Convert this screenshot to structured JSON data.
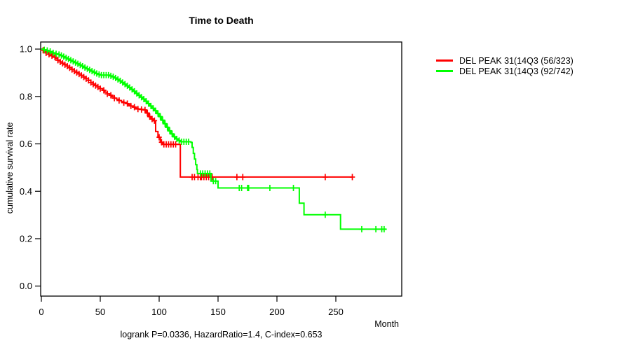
{
  "chart_data": {
    "type": "line",
    "subtype": "kaplan-meier-step-survival",
    "title": "Time to Death",
    "xlabel": "Month",
    "ylabel": "cumulative survival rate",
    "annotation": "logrank P=0.0336, HazardRatio=1.4, C-index=0.653",
    "xlim": [
      0,
      306
    ],
    "ylim": [
      0.0,
      1.0
    ],
    "x_ticks": [
      0,
      50,
      100,
      150,
      200,
      250
    ],
    "y_ticks": [
      0.0,
      0.2,
      0.4,
      0.6,
      0.8,
      1.0
    ],
    "grid": false,
    "legend_position": "outside-right-top",
    "axis_color": "#000000",
    "background_color": "#ffffff",
    "series": [
      {
        "name": "DEL PEAK 31(14Q3 (56/323)",
        "color": "#FF0000",
        "events": 56,
        "total": 323,
        "steps": [
          [
            0,
            1.0
          ],
          [
            1,
            0.995
          ],
          [
            2,
            0.99
          ],
          [
            4,
            0.984
          ],
          [
            6,
            0.978
          ],
          [
            8,
            0.972
          ],
          [
            10,
            0.966
          ],
          [
            12,
            0.96
          ],
          [
            14,
            0.953
          ],
          [
            16,
            0.946
          ],
          [
            18,
            0.94
          ],
          [
            20,
            0.934
          ],
          [
            22,
            0.928
          ],
          [
            24,
            0.921
          ],
          [
            26,
            0.914
          ],
          [
            28,
            0.907
          ],
          [
            30,
            0.901
          ],
          [
            32,
            0.895
          ],
          [
            34,
            0.889
          ],
          [
            36,
            0.882
          ],
          [
            38,
            0.875
          ],
          [
            40,
            0.868
          ],
          [
            42,
            0.859
          ],
          [
            44,
            0.852
          ],
          [
            46,
            0.846
          ],
          [
            48,
            0.84
          ],
          [
            50,
            0.833
          ],
          [
            52,
            0.826
          ],
          [
            54,
            0.818
          ],
          [
            56,
            0.811
          ],
          [
            58,
            0.805
          ],
          [
            60,
            0.799
          ],
          [
            62,
            0.793
          ],
          [
            64,
            0.788
          ],
          [
            66,
            0.783
          ],
          [
            68,
            0.778
          ],
          [
            70,
            0.774
          ],
          [
            72,
            0.77
          ],
          [
            74,
            0.765
          ],
          [
            76,
            0.76
          ],
          [
            78,
            0.755
          ],
          [
            80,
            0.75
          ],
          [
            82,
            0.747
          ],
          [
            85,
            0.745
          ],
          [
            87,
            0.743
          ],
          [
            89,
            0.73
          ],
          [
            91,
            0.715
          ],
          [
            93,
            0.705
          ],
          [
            95,
            0.698
          ],
          [
            97,
            0.652
          ],
          [
            99,
            0.628
          ],
          [
            101,
            0.607
          ],
          [
            103,
            0.598
          ],
          [
            118,
            0.46
          ],
          [
            264,
            0.46
          ]
        ],
        "censor_months": [
          1.5,
          4,
          6.5,
          9,
          11.5,
          14,
          16,
          18,
          20,
          22,
          24,
          26,
          28,
          30,
          32,
          34,
          36,
          38,
          40,
          42,
          44,
          46,
          48,
          50,
          53,
          56,
          59,
          62,
          66,
          70,
          73,
          76,
          79,
          82,
          85,
          88,
          90,
          92,
          94,
          96,
          100,
          102,
          104,
          106,
          108,
          110,
          112,
          114,
          128,
          130,
          133,
          135,
          136,
          138,
          140,
          142,
          145,
          166,
          171,
          241,
          264
        ]
      },
      {
        "name": "DEL PEAK 31(14Q3 (92/742)",
        "color": "#00FF00",
        "events": 92,
        "total": 742,
        "steps": [
          [
            0,
            1.0
          ],
          [
            2,
            0.997
          ],
          [
            4,
            0.994
          ],
          [
            6,
            0.99
          ],
          [
            8,
            0.987
          ],
          [
            10,
            0.984
          ],
          [
            12,
            0.98
          ],
          [
            14,
            0.977
          ],
          [
            16,
            0.973
          ],
          [
            18,
            0.968
          ],
          [
            20,
            0.963
          ],
          [
            22,
            0.958
          ],
          [
            24,
            0.953
          ],
          [
            26,
            0.948
          ],
          [
            28,
            0.943
          ],
          [
            30,
            0.938
          ],
          [
            32,
            0.933
          ],
          [
            34,
            0.928
          ],
          [
            36,
            0.922
          ],
          [
            38,
            0.917
          ],
          [
            40,
            0.912
          ],
          [
            42,
            0.907
          ],
          [
            44,
            0.902
          ],
          [
            46,
            0.897
          ],
          [
            48,
            0.893
          ],
          [
            50,
            0.89
          ],
          [
            58,
            0.887
          ],
          [
            60,
            0.883
          ],
          [
            62,
            0.878
          ],
          [
            64,
            0.872
          ],
          [
            66,
            0.866
          ],
          [
            68,
            0.859
          ],
          [
            70,
            0.852
          ],
          [
            72,
            0.845
          ],
          [
            74,
            0.838
          ],
          [
            76,
            0.83
          ],
          [
            78,
            0.822
          ],
          [
            80,
            0.813
          ],
          [
            82,
            0.805
          ],
          [
            84,
            0.797
          ],
          [
            86,
            0.789
          ],
          [
            88,
            0.78
          ],
          [
            90,
            0.77
          ],
          [
            92,
            0.76
          ],
          [
            94,
            0.75
          ],
          [
            96,
            0.74
          ],
          [
            98,
            0.728
          ],
          [
            100,
            0.715
          ],
          [
            102,
            0.7
          ],
          [
            104,
            0.685
          ],
          [
            106,
            0.67
          ],
          [
            108,
            0.655
          ],
          [
            110,
            0.642
          ],
          [
            112,
            0.63
          ],
          [
            114,
            0.621
          ],
          [
            116,
            0.614
          ],
          [
            118,
            0.609
          ],
          [
            127,
            0.606
          ],
          [
            128,
            0.585
          ],
          [
            129,
            0.56
          ],
          [
            130,
            0.536
          ],
          [
            131,
            0.512
          ],
          [
            132,
            0.492
          ],
          [
            132.5,
            0.475
          ],
          [
            144,
            0.443
          ],
          [
            150,
            0.414
          ],
          [
            219,
            0.35
          ],
          [
            223,
            0.301
          ],
          [
            254,
            0.24
          ],
          [
            293,
            0.24
          ]
        ],
        "censor_months": [
          2.5,
          5,
          7.5,
          10,
          12.5,
          15,
          17,
          19,
          21,
          23,
          25,
          27,
          29,
          31,
          33,
          35,
          37,
          39,
          41,
          43,
          45,
          47,
          49,
          51,
          53,
          55,
          57,
          59,
          61,
          63,
          65,
          67,
          69,
          71,
          73,
          75,
          77,
          79,
          81,
          83,
          85,
          87,
          89,
          91,
          93,
          95,
          97,
          99,
          101,
          103,
          105,
          107,
          109,
          111,
          113,
          115,
          117,
          119,
          121,
          123,
          125,
          135,
          137,
          139,
          141,
          143,
          146,
          148,
          168,
          170,
          175,
          176,
          194,
          214,
          241,
          272,
          284,
          289,
          291
        ]
      }
    ]
  }
}
